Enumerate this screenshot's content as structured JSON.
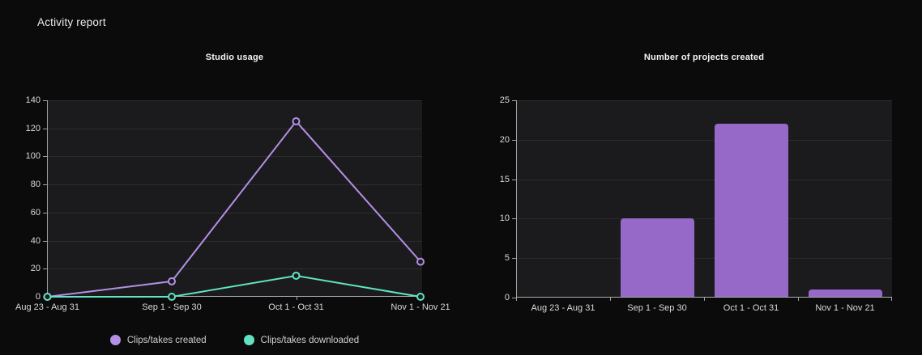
{
  "page": {
    "title": "Activity report"
  },
  "colors": {
    "background": "#0b0b0b",
    "plot_background": "#1b1b1d",
    "gridline": "#2b2b2b",
    "axis": "#a0a0a0",
    "tick_label": "#d9d9d9",
    "series_created": "#b48fe6",
    "series_downloaded": "#62e2c0",
    "bar": "#9669c8"
  },
  "chart_data": [
    {
      "type": "line",
      "title": "Studio usage",
      "categories": [
        "Aug 23 - Aug 31",
        "Sep 1 - Sep 30",
        "Oct 1 - Oct 31",
        "Nov 1 - Nov 21"
      ],
      "series": [
        {
          "name": "Clips/takes created",
          "color": "#b48fe6",
          "values": [
            0,
            11,
            125,
            25
          ]
        },
        {
          "name": "Clips/takes downloaded",
          "color": "#62e2c0",
          "values": [
            0,
            0,
            15,
            0
          ]
        }
      ],
      "ylim": [
        0,
        140
      ],
      "yticks": [
        0,
        20,
        40,
        60,
        80,
        100,
        120,
        140
      ],
      "grid": true,
      "legend_position": "bottom"
    },
    {
      "type": "bar",
      "title": "Number of projects created",
      "categories": [
        "Aug 23 - Aug 31",
        "Sep 1 - Sep 30",
        "Oct 1 - Oct 31",
        "Nov 1 - Nov 21"
      ],
      "values": [
        0,
        10,
        22,
        1
      ],
      "bar_color": "#9669c8",
      "ylim": [
        0,
        25
      ],
      "yticks": [
        0,
        5,
        10,
        15,
        20,
        25
      ],
      "grid": true,
      "legend_position": "none"
    }
  ]
}
